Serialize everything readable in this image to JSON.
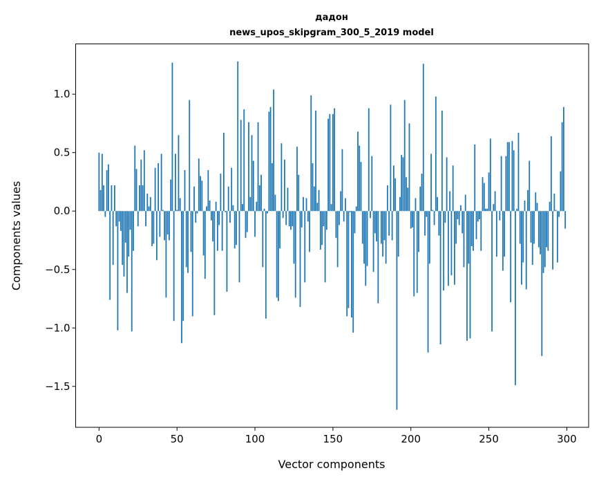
{
  "chart_data": {
    "type": "bar",
    "title": [
      "дадон",
      "news_upos_skipgram_300_5_2019 model"
    ],
    "xlabel": "Vector components",
    "ylabel": "Components values",
    "xlim": [
      -15,
      314
    ],
    "ylim": [
      -1.85,
      1.43
    ],
    "xticks": [
      0,
      50,
      100,
      150,
      200,
      250,
      300
    ],
    "xtick_labels": [
      "0",
      "50",
      "100",
      "150",
      "200",
      "250",
      "300"
    ],
    "yticks": [
      -1.5,
      -1.0,
      -0.5,
      0.0,
      0.5,
      1.0
    ],
    "ytick_labels": [
      "−1.5",
      "−1.0",
      "−0.5",
      "0.0",
      "0.5",
      "1.0"
    ],
    "grid": false,
    "bar_color": "#1f77b4",
    "bar_width": 0.8,
    "values": [
      0.5,
      0.18,
      0.49,
      0.22,
      -0.05,
      0.35,
      0.4,
      -0.76,
      0.22,
      -0.46,
      0.22,
      -0.13,
      -1.02,
      -0.09,
      -0.17,
      -0.46,
      -0.56,
      -0.27,
      -0.7,
      -0.39,
      -0.16,
      -1.03,
      -0.34,
      0.56,
      0.36,
      -0.13,
      0.22,
      0.44,
      0.22,
      0.52,
      -0.13,
      0.15,
      0.04,
      0.12,
      -0.3,
      -0.28,
      0.37,
      -0.42,
      0.41,
      -0.22,
      0.49,
      0.01,
      -0.25,
      -0.74,
      -0.2,
      -0.25,
      0.27,
      1.27,
      -0.94,
      0.49,
      0.01,
      0.65,
      0.11,
      -1.13,
      -0.94,
      0.35,
      -0.48,
      -0.53,
      0.95,
      -0.35,
      -0.9,
      0.21,
      -0.1,
      -0.02,
      0.45,
      0.3,
      0.26,
      -0.38,
      -0.58,
      0.04,
      0.35,
      0.09,
      -0.08,
      -0.26,
      -0.89,
      0.08,
      -0.34,
      -0.12,
      0.32,
      -0.34,
      0.67,
      -0.01,
      -0.69,
      0.21,
      -0.1,
      0.37,
      0.05,
      -0.32,
      -0.29,
      1.28,
      -0.61,
      0.78,
      0.06,
      0.87,
      -0.23,
      -0.18,
      0.76,
      0.12,
      0.65,
      0.43,
      -0.22,
      0.08,
      0.76,
      0.22,
      0.31,
      -0.48,
      0.02,
      -0.92,
      -0.02,
      0.85,
      0.89,
      0.41,
      1.04,
      0.14,
      -0.74,
      -0.77,
      -0.32,
      0.58,
      -0.06,
      0.44,
      -0.12,
      0.2,
      -0.13,
      -0.16,
      -0.13,
      -0.45,
      -0.74,
      0.55,
      0.31,
      -0.82,
      -0.14,
      0.12,
      -0.61,
      0.11,
      -0.09,
      -0.35,
      0.99,
      0.41,
      0.21,
      0.86,
      0.07,
      0.18,
      -0.33,
      -0.29,
      -0.13,
      -0.61,
      -0.16,
      0.79,
      0.83,
      0.06,
      0.83,
      0.88,
      -0.23,
      -0.48,
      -0.12,
      0.17,
      0.53,
      -0.09,
      0.11,
      -0.9,
      -0.83,
      -0.01,
      -0.91,
      -1.04,
      -0.19,
      0.04,
      0.68,
      0.56,
      0.42,
      -0.28,
      -0.45,
      -0.64,
      -0.47,
      0.88,
      -0.06,
      0.47,
      -0.52,
      -0.19,
      -0.26,
      -0.79,
      0.0,
      -0.28,
      -0.39,
      -0.25,
      -0.45,
      0.22,
      -0.21,
      0.91,
      -0.25,
      0.39,
      0.28,
      -1.7,
      -0.39,
      0.12,
      0.48,
      0.46,
      0.95,
      0.29,
      0.2,
      0.75,
      -0.15,
      -0.14,
      -0.73,
      0.11,
      -0.7,
      -0.35,
      0.21,
      0.32,
      1.26,
      -0.21,
      -0.05,
      -1.21,
      -0.45,
      0.49,
      0.01,
      -0.12,
      0.98,
      0.12,
      -0.21,
      -1.14,
      0.86,
      -0.68,
      -0.1,
      0.46,
      -0.64,
      0.17,
      -0.55,
      0.39,
      -0.63,
      -0.28,
      -0.07,
      -0.12,
      0.05,
      -0.19,
      -0.48,
      0.14,
      -1.11,
      -0.45,
      -1.09,
      -0.3,
      -0.34,
      0.57,
      -0.24,
      -0.09,
      -0.07,
      -0.34,
      0.29,
      0.24,
      0.02,
      0.02,
      0.33,
      0.62,
      -1.03,
      0.06,
      0.17,
      -0.39,
      0.0,
      -0.08,
      0.47,
      -0.51,
      -0.39,
      0.47,
      0.59,
      0.59,
      -0.78,
      0.6,
      0.52,
      -1.49,
      0.02,
      0.67,
      -0.28,
      -0.63,
      -0.44,
      0.09,
      -0.67,
      0.18,
      0.43,
      -0.27,
      -0.46,
      -0.28,
      0.16,
      0.07,
      -0.31,
      -0.37,
      -1.24,
      -0.53,
      -0.48,
      -0.31,
      -0.34,
      0.08,
      0.64,
      -0.5,
      0.15,
      0.01,
      -0.44,
      -0.05,
      0.34,
      0.76,
      0.89,
      -0.15
    ]
  }
}
